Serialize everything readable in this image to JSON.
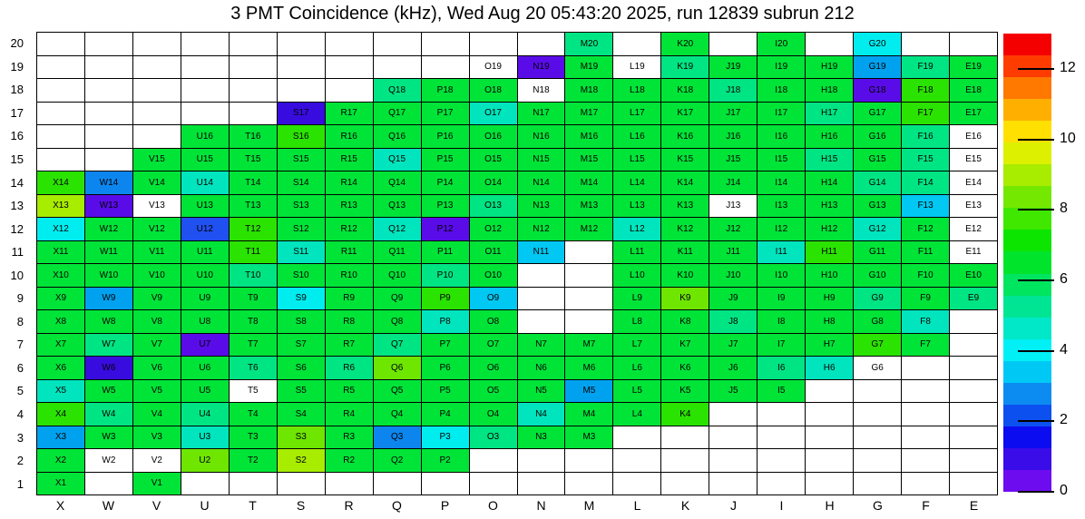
{
  "title": "3 PMT Coincidence (kHz), Wed Aug 20 05:43:20 2025, run 12839 subrun 212",
  "axis": {
    "rows": [
      "20",
      "19",
      "18",
      "17",
      "16",
      "15",
      "14",
      "13",
      "12",
      "11",
      "10",
      "9",
      "8",
      "7",
      "6",
      "5",
      "4",
      "3",
      "2",
      "1"
    ],
    "cols": [
      "X",
      "W",
      "V",
      "U",
      "T",
      "S",
      "R",
      "Q",
      "P",
      "O",
      "N",
      "M",
      "L",
      "K",
      "J",
      "I",
      "H",
      "G",
      "F",
      "E"
    ]
  },
  "palette": {
    "W": "#FFFFFF",
    "yg2": "#A8EC00",
    "yg1": "#6EE600",
    "bg": "#2BE300",
    "g": "#00E438",
    "sg": "#00E584",
    "tq": "#00E5BE",
    "cy": "#00EDF0",
    "cb": "#00C8F2",
    "lb": "#00A2F0",
    "mb": "#0C86EE",
    "rb": "#2050F0",
    "v1": "#5A0CE8",
    "v2": "#380CDE"
  },
  "colorbar": {
    "range": [
      0,
      13
    ],
    "tick_values": [
      0,
      2,
      4,
      6,
      8,
      10,
      12
    ],
    "bands_bottom_to_top": [
      "#6E0CF0",
      "#3A0CE8",
      "#0C0CF0",
      "#0C50F0",
      "#0C8CF0",
      "#00C8F5",
      "#00F0F5",
      "#00E8C8",
      "#00E594",
      "#00E55F",
      "#00E52B",
      "#0CE500",
      "#40E800",
      "#74E800",
      "#A8EC00",
      "#DCF000",
      "#FFE000",
      "#FFAF00",
      "#FF7800",
      "#FF3C00",
      "#F50000"
    ]
  },
  "chart_data": {
    "type": "heatmap",
    "title": "3 PMT Coincidence (kHz), Wed Aug 20 05:43:20 2025, run 12839 subrun 212",
    "xlabel": "",
    "ylabel": "",
    "x_categories": [
      "X",
      "W",
      "V",
      "U",
      "T",
      "S",
      "R",
      "Q",
      "P",
      "O",
      "N",
      "M",
      "L",
      "K",
      "J",
      "I",
      "H",
      "G",
      "F",
      "E"
    ],
    "y_categories_top_to_bottom": [
      "20",
      "19",
      "18",
      "17",
      "16",
      "15",
      "14",
      "13",
      "12",
      "11",
      "10",
      "9",
      "8",
      "7",
      "6",
      "5",
      "4",
      "3",
      "2",
      "1"
    ],
    "legend_position": "right-colorbar",
    "colorbar_range_khz": [
      0,
      13
    ],
    "value_estimates_khz_by_token": {
      "W": null,
      "yg2": 9.4,
      "yg1": 8.3,
      "bg": 7.3,
      "g": 6.3,
      "sg": 5.6,
      "tq": 4.9,
      "cy": 4.2,
      "cb": 3.7,
      "lb": 3.2,
      "mb": 2.9,
      "rb": 1.9,
      "v1": 0.5,
      "v2": 1.0
    },
    "rows": [
      [
        ":W",
        ":W",
        ":W",
        ":W",
        ":W",
        ":W",
        ":W",
        ":W",
        ":W",
        ":W",
        ":W",
        "M20:sg",
        ":W",
        "K20:g",
        ":W",
        "I20:g",
        ":W",
        "G20:cy",
        ":W",
        ":W"
      ],
      [
        ":W",
        ":W",
        ":W",
        ":W",
        ":W",
        ":W",
        ":W",
        ":W",
        ":W",
        "O19:W",
        "N19:v1",
        "M19:g",
        "L19:W",
        "K19:sg",
        "J19:g",
        "I19:g",
        "H19:g",
        "G19:lb",
        "F19:sg",
        "E19:g"
      ],
      [
        ":W",
        ":W",
        ":W",
        ":W",
        ":W",
        ":W",
        ":W",
        "Q18:sg",
        "P18:g",
        "O18:g",
        "N18:W",
        "M18:g",
        "L18:g",
        "K18:g",
        "J18:sg",
        "I18:g",
        "H18:g",
        "G18:v1",
        "F18:bg",
        "E18:g"
      ],
      [
        ":W",
        ":W",
        ":W",
        ":W",
        ":W",
        "S17:v2",
        "R17:g",
        "Q17:g",
        "P17:g",
        "O17:tq",
        "N17:g",
        "M17:g",
        "L17:g",
        "K17:g",
        "J17:g",
        "I17:g",
        "H17:sg",
        "G17:g",
        "F17:bg",
        "E17:g"
      ],
      [
        ":W",
        ":W",
        ":W",
        "U16:g",
        "T16:g",
        "S16:bg",
        "R16:g",
        "Q16:g",
        "P16:g",
        "O16:g",
        "N16:g",
        "M16:g",
        "L16:g",
        "K16:g",
        "J16:g",
        "I16:g",
        "H16:g",
        "G16:g",
        "F16:sg",
        "E16:W"
      ],
      [
        ":W",
        ":W",
        "V15:g",
        "U15:g",
        "T15:g",
        "S15:g",
        "R15:g",
        "Q15:tq",
        "P15:g",
        "O15:g",
        "N15:g",
        "M15:g",
        "L15:g",
        "K15:g",
        "J15:g",
        "I15:g",
        "H15:sg",
        "G15:g",
        "F15:sg",
        "E15:W"
      ],
      [
        "X14:bg",
        "W14:mb",
        "V14:g",
        "U14:tq",
        "T14:g",
        "S14:g",
        "R14:g",
        "Q14:g",
        "P14:g",
        "O14:g",
        "N14:g",
        "M14:g",
        "L14:g",
        "K14:g",
        "J14:g",
        "I14:g",
        "H14:g",
        "G14:sg",
        "F14:sg",
        "E14:W"
      ],
      [
        "X13:yg2",
        "W13:v1",
        "V13:W",
        "U13:g",
        "T13:g",
        "S13:g",
        "R13:g",
        "Q13:g",
        "P13:g",
        "O13:sg",
        "N13:g",
        "M13:g",
        "L13:g",
        "K13:g",
        "J13:W",
        "I13:g",
        "H13:g",
        "G13:g",
        "F13:cb",
        "E13:W"
      ],
      [
        "X12:cy",
        "W12:g",
        "V12:g",
        "U12:rb",
        "T12:bg",
        "S12:g",
        "R12:g",
        "Q12:tq",
        "P12:v1",
        "O12:g",
        "N12:g",
        "M12:g",
        "L12:tq",
        "K12:g",
        "J12:g",
        "I12:g",
        "H12:g",
        "G12:tq",
        "F12:g",
        "E12:W"
      ],
      [
        "X11:g",
        "W11:g",
        "V11:g",
        "U11:g",
        "T11:bg",
        "S11:tq",
        "R11:g",
        "Q11:g",
        "P11:g",
        "O11:g",
        "N11:cb",
        ":W",
        "L11:g",
        "K11:g",
        "J11:g",
        "I11:tq",
        "H11:bg",
        "G11:g",
        "F11:g",
        "E11:W"
      ],
      [
        "X10:g",
        "W10:g",
        "V10:g",
        "U10:g",
        "T10:sg",
        "S10:g",
        "R10:g",
        "Q10:g",
        "P10:sg",
        "O10:g",
        ":W",
        ":W",
        "L10:g",
        "K10:g",
        "J10:g",
        "I10:g",
        "H10:g",
        "G10:g",
        "F10:g",
        "E10:g"
      ],
      [
        "X9:g",
        "W9:lb",
        "V9:g",
        "U9:g",
        "T9:g",
        "S9:cy",
        "R9:g",
        "Q9:g",
        "P9:bg",
        "O9:cb",
        ":W",
        ":W",
        "L9:g",
        "K9:yg1",
        "J9:g",
        "I9:g",
        "H9:g",
        "G9:sg",
        "F9:g",
        "E9:sg"
      ],
      [
        "X8:g",
        "W8:g",
        "V8:g",
        "U8:g",
        "T8:g",
        "S8:g",
        "R8:g",
        "Q8:g",
        "P8:tq",
        "O8:g",
        ":W",
        ":W",
        "L8:g",
        "K8:g",
        "J8:sg",
        "I8:g",
        "H8:g",
        "G8:g",
        "F8:tq",
        ":W"
      ],
      [
        "X7:g",
        "W7:sg",
        "V7:g",
        "U7:v1",
        "T7:g",
        "S7:g",
        "R7:g",
        "Q7:sg",
        "P7:g",
        "O7:g",
        "N7:g",
        "M7:g",
        "L7:g",
        "K7:g",
        "J7:g",
        "I7:g",
        "H7:g",
        "G7:bg",
        "F7:g",
        ":W"
      ],
      [
        "X6:g",
        "W6:v2",
        "V6:g",
        "U6:g",
        "T6:sg",
        "S6:g",
        "R6:sg",
        "Q6:yg1",
        "P6:g",
        "O6:g",
        "N6:g",
        "M6:g",
        "L6:g",
        "K6:g",
        "J6:g",
        "I6:sg",
        "H6:tq",
        "G6:W",
        ":W",
        ":W"
      ],
      [
        "X5:tq",
        "W5:g",
        "V5:g",
        "U5:g",
        "T5:W",
        "S5:g",
        "R5:g",
        "Q5:g",
        "P5:g",
        "O5:g",
        "N5:g",
        "M5:lb",
        "L5:g",
        "K5:g",
        "J5:g",
        "I5:g",
        ":W",
        ":W",
        ":W",
        ":W"
      ],
      [
        "X4:bg",
        "W4:sg",
        "V4:g",
        "U4:sg",
        "T4:g",
        "S4:g",
        "R4:g",
        "Q4:g",
        "P4:g",
        "O4:g",
        "N4:tq",
        "M4:g",
        "L4:g",
        "K4:bg",
        ":W",
        ":W",
        ":W",
        ":W",
        ":W",
        ":W"
      ],
      [
        "X3:lb",
        "W3:g",
        "V3:g",
        "U3:tq",
        "T3:g",
        "S3:yg1",
        "R3:g",
        "Q3:mb",
        "P3:cy",
        "O3:sg",
        "N3:g",
        "M3:g",
        ":W",
        ":W",
        ":W",
        ":W",
        ":W",
        ":W",
        ":W",
        ":W"
      ],
      [
        "X2:g",
        "W2:W",
        "V2:W",
        "U2:yg1",
        "T2:g",
        "S2:yg2",
        "R2:g",
        "Q2:g",
        "P2:g",
        ":W",
        ":W",
        ":W",
        ":W",
        ":W",
        ":W",
        ":W",
        ":W",
        ":W",
        ":W",
        ":W"
      ],
      [
        "X1:g",
        ":W",
        "V1:g",
        ":W",
        ":W",
        ":W",
        ":W",
        ":W",
        ":W",
        ":W",
        ":W",
        ":W",
        ":W",
        ":W",
        ":W",
        ":W",
        ":W",
        ":W",
        ":W",
        ":W"
      ]
    ]
  }
}
